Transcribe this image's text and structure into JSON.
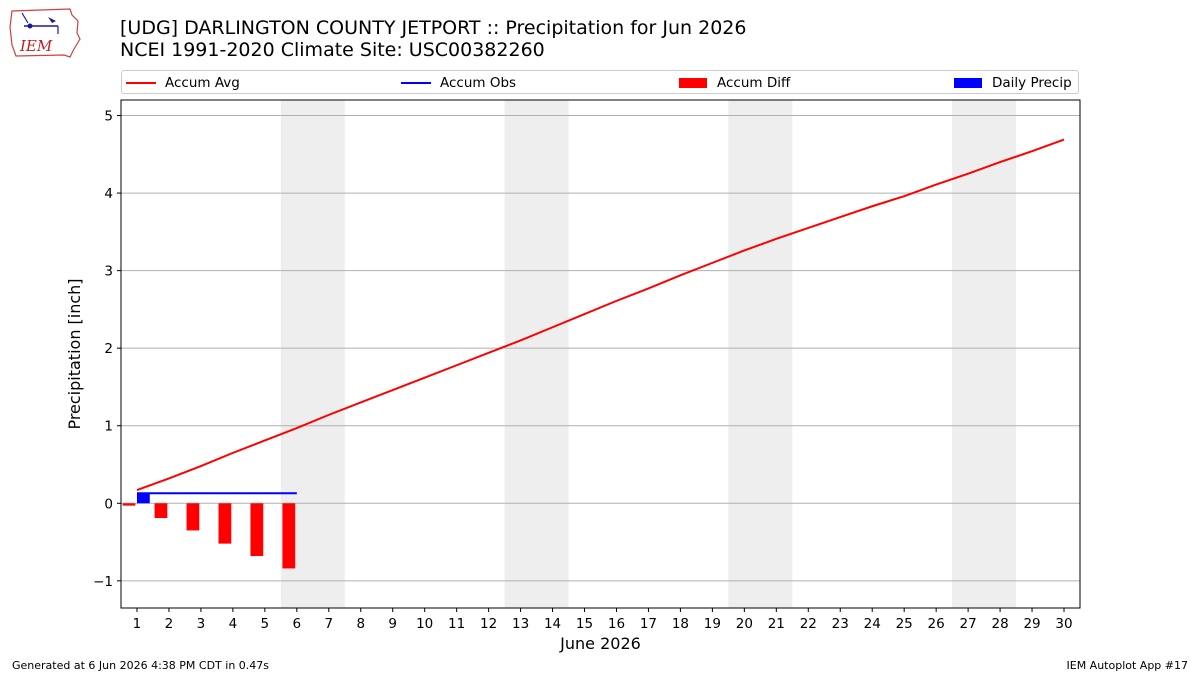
{
  "header": {
    "logo_text": "IEM",
    "title_line1": "[UDG] DARLINGTON COUNTY JETPORT :: Precipitation for Jun 2026",
    "title_line2": "NCEI 1991-2020 Climate Site: USC00382260"
  },
  "colors": {
    "accum_avg": "#ff0000",
    "accum_obs": "#0000ff",
    "accum_diff": "#ff0000",
    "daily_precip": "#0000ff",
    "weekend_shade": "#eeeeee",
    "grid": "#b0b0b0"
  },
  "chart_data": {
    "type": "line",
    "xlabel": "June 2026",
    "ylabel": "Precipitation [inch]",
    "x_ticks": [
      1,
      2,
      3,
      4,
      5,
      6,
      7,
      8,
      9,
      10,
      11,
      12,
      13,
      14,
      15,
      16,
      17,
      18,
      19,
      20,
      21,
      22,
      23,
      24,
      25,
      26,
      27,
      28,
      29,
      30
    ],
    "xlim": [
      0.5,
      30.5
    ],
    "ylim": [
      -1.35,
      5.2
    ],
    "y_ticks": [
      -1,
      0,
      1,
      2,
      3,
      4,
      5
    ],
    "y_tick_labels": [
      "−1",
      "0",
      "1",
      "2",
      "3",
      "4",
      "5"
    ],
    "grid": "horizontal",
    "legend_position": "top",
    "weekend_shading": [
      [
        6,
        7
      ],
      [
        13,
        14
      ],
      [
        20,
        21
      ],
      [
        27,
        28
      ]
    ],
    "series": [
      {
        "name": "Accum Avg",
        "kind": "line",
        "x": [
          1,
          2,
          3,
          4,
          5,
          6,
          7,
          8,
          9,
          10,
          11,
          12,
          13,
          14,
          15,
          16,
          17,
          18,
          19,
          20,
          21,
          22,
          23,
          24,
          25,
          26,
          27,
          28,
          29,
          30
        ],
        "values": [
          0.17,
          0.32,
          0.48,
          0.65,
          0.81,
          0.97,
          1.14,
          1.3,
          1.46,
          1.62,
          1.78,
          1.94,
          2.1,
          2.27,
          2.44,
          2.61,
          2.77,
          2.94,
          3.1,
          3.26,
          3.41,
          3.55,
          3.69,
          3.83,
          3.96,
          4.11,
          4.25,
          4.4,
          4.54,
          4.69
        ]
      },
      {
        "name": "Accum Obs",
        "kind": "line",
        "x": [
          1,
          2,
          3,
          4,
          5,
          6
        ],
        "values": [
          0.13,
          0.13,
          0.13,
          0.13,
          0.13,
          0.13
        ]
      },
      {
        "name": "Accum Diff",
        "kind": "bar",
        "x": [
          1,
          2,
          3,
          4,
          5,
          6
        ],
        "values": [
          -0.03,
          -0.19,
          -0.35,
          -0.52,
          -0.68,
          -0.84
        ]
      },
      {
        "name": "Daily Precip",
        "kind": "bar",
        "x": [
          1,
          2,
          3,
          4,
          5,
          6
        ],
        "values": [
          0.13,
          0,
          0,
          0,
          0,
          0
        ]
      }
    ]
  },
  "footer": {
    "left": "Generated at 6 Jun 2026 4:38 PM CDT in 0.47s",
    "right": "IEM Autoplot App #17"
  }
}
